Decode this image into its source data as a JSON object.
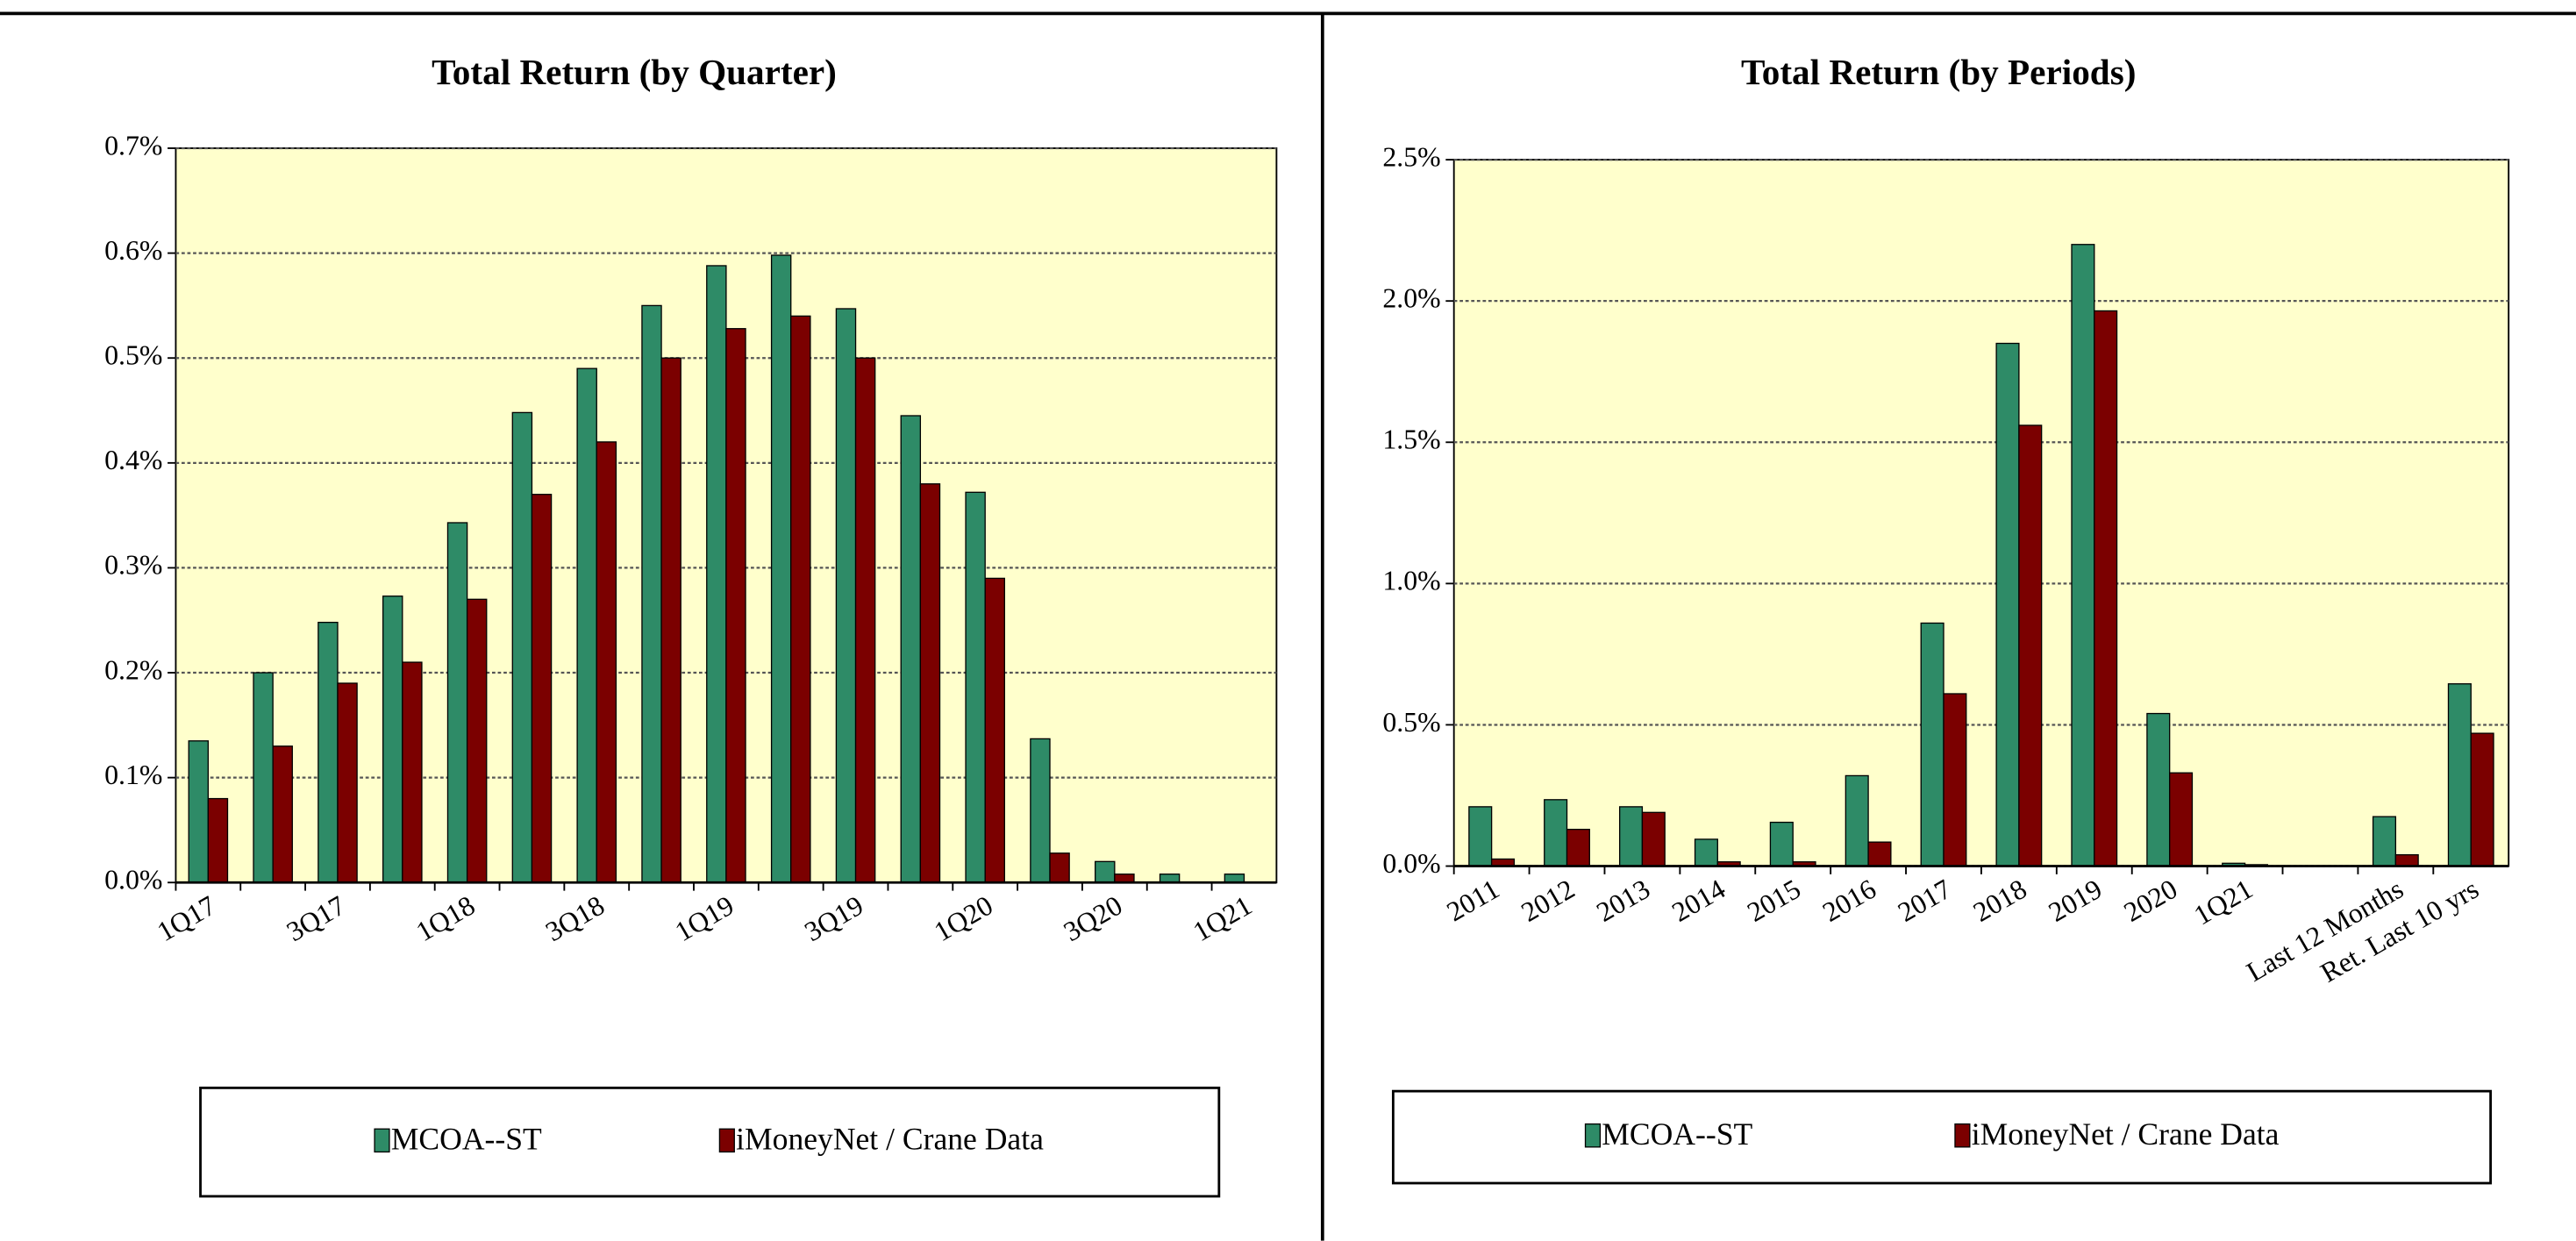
{
  "chart_data": [
    {
      "type": "bar",
      "title": "Total Return (by Quarter)",
      "categories": [
        "1Q17",
        null,
        "3Q17",
        null,
        "1Q18",
        null,
        "3Q18",
        null,
        "1Q19",
        null,
        "3Q19",
        null,
        "1Q20",
        null,
        "3Q20",
        null,
        "1Q21"
      ],
      "series": [
        {
          "name": "MCOA--ST",
          "color": "#2e8b67",
          "values": [
            0.135,
            0.2,
            0.248,
            0.273,
            0.343,
            0.448,
            0.49,
            0.55,
            0.588,
            0.598,
            0.547,
            0.445,
            0.372,
            0.137,
            0.02,
            0.008,
            0.008
          ]
        },
        {
          "name": "iMoneyNet / Crane Data",
          "color": "#7b0000",
          "values": [
            0.08,
            0.13,
            0.19,
            0.21,
            0.27,
            0.37,
            0.42,
            0.5,
            0.528,
            0.54,
            0.5,
            0.38,
            0.29,
            0.028,
            0.008,
            0,
            0
          ]
        }
      ],
      "ylim": [
        0,
        0.7
      ],
      "yticks": [
        {
          "value": 0,
          "label": "0.0%"
        },
        {
          "value": 0.1,
          "label": "0.1%"
        },
        {
          "value": 0.2,
          "label": "0.2%"
        },
        {
          "value": 0.3,
          "label": "0.3%"
        },
        {
          "value": 0.4,
          "label": "0.4%"
        },
        {
          "value": 0.5,
          "label": "0.5%"
        },
        {
          "value": 0.6,
          "label": "0.6%"
        },
        {
          "value": 0.7,
          "label": "0.7%"
        }
      ],
      "grid": true
    },
    {
      "type": "bar",
      "title": "Total Return (by Periods)",
      "categories": [
        "2011",
        "2012",
        "2013",
        "2014",
        "2015",
        "2016",
        "2017",
        "2018",
        "2019",
        "2020",
        "1Q21",
        null,
        "Last 12 Months",
        "Ret. Last 10 yrs"
      ],
      "series": [
        {
          "name": "MCOA--ST",
          "color": "#2e8b67",
          "values": [
            0.21,
            0.235,
            0.21,
            0.095,
            0.155,
            0.32,
            0.86,
            1.85,
            2.2,
            0.54,
            0.01,
            null,
            0.175,
            0.645
          ]
        },
        {
          "name": "iMoneyNet / Crane Data",
          "color": "#7b0000",
          "values": [
            0.025,
            0.13,
            0.19,
            0.015,
            0.015,
            0.085,
            0.61,
            1.56,
            1.965,
            0.33,
            0.005,
            null,
            0.04,
            0.47
          ]
        }
      ],
      "ylim": [
        0,
        2.5
      ],
      "yticks": [
        {
          "value": 0,
          "label": "0.0%"
        },
        {
          "value": 0.5,
          "label": "0.5%"
        },
        {
          "value": 1,
          "label": "1.0%"
        },
        {
          "value": 1.5,
          "label": "1.5%"
        },
        {
          "value": 2,
          "label": "2.0%"
        },
        {
          "value": 2.5,
          "label": "2.5%"
        }
      ],
      "grid": true
    }
  ]
}
